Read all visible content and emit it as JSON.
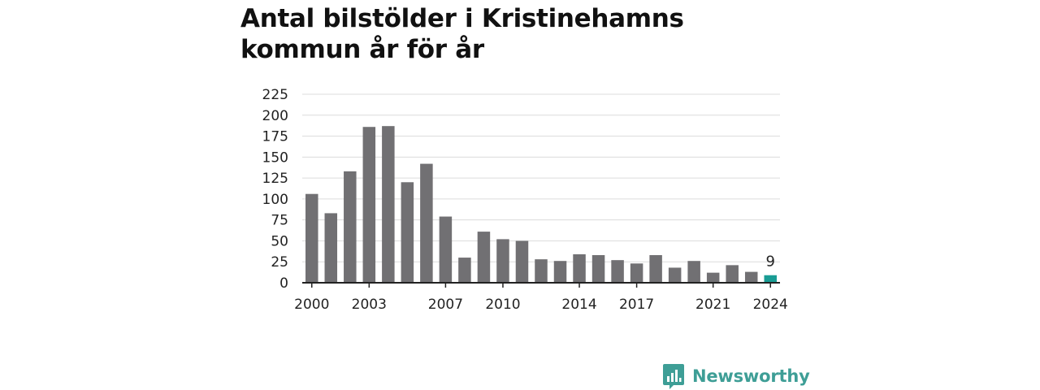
{
  "chart_data": {
    "type": "bar",
    "title": "Antal bilstölder i Kristinehamns kommun år för år",
    "title_lines": [
      "Antal bilstölder i Kristinehamns",
      "kommun år för år"
    ],
    "categories": [
      "2000",
      "2001",
      "2002",
      "2003",
      "2004",
      "2005",
      "2006",
      "2007",
      "2008",
      "2009",
      "2010",
      "2011",
      "2012",
      "2013",
      "2014",
      "2015",
      "2016",
      "2017",
      "2018",
      "2019",
      "2020",
      "2021",
      "2022",
      "2023",
      "2024"
    ],
    "values": [
      106,
      83,
      133,
      186,
      187,
      120,
      142,
      79,
      30,
      61,
      52,
      50,
      28,
      26,
      34,
      33,
      27,
      23,
      33,
      18,
      26,
      12,
      21,
      13,
      9
    ],
    "x_tick_labels": [
      "2000",
      "2003",
      "2007",
      "2010",
      "2014",
      "2017",
      "2021",
      "2024"
    ],
    "y_ticks": [
      0,
      25,
      50,
      75,
      100,
      125,
      150,
      175,
      200,
      225
    ],
    "ylim": [
      0,
      225
    ],
    "grid": true,
    "highlight_category": "2024",
    "highlight_label": "9",
    "bar_color": "#717073",
    "highlight_color": "#199c94"
  },
  "brand": {
    "name": "Newsworthy",
    "color": "#3e9e96"
  }
}
